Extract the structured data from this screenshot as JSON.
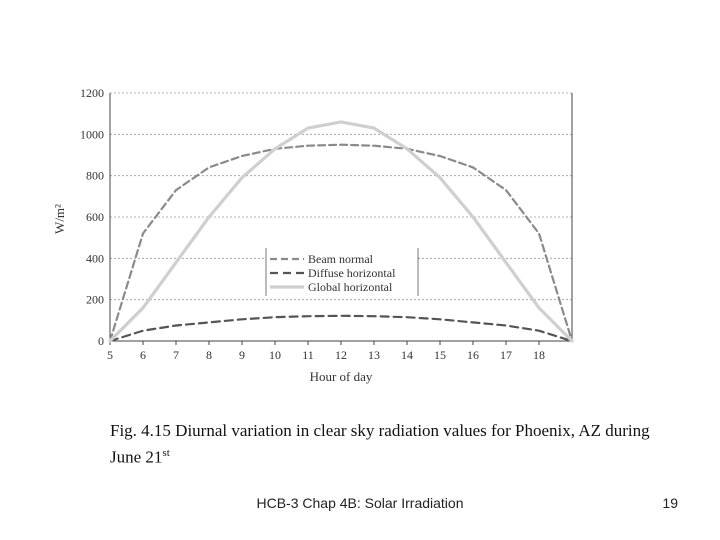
{
  "chart_data": {
    "type": "line",
    "xlabel": "Hour of day",
    "ylabel": "W/m²",
    "xlim": [
      5,
      19
    ],
    "ylim": [
      0,
      1200
    ],
    "xticks": [
      5,
      6,
      7,
      8,
      9,
      10,
      11,
      12,
      13,
      14,
      15,
      16,
      17,
      18
    ],
    "yticks": [
      0,
      200,
      400,
      600,
      800,
      1000,
      1200
    ],
    "grid": "horizontal dashed",
    "legend_position": "center-right",
    "series": [
      {
        "name": "Beam normal",
        "style": "dashed",
        "color": "#8a8a8a",
        "x": [
          5,
          6,
          7,
          8,
          9,
          10,
          11,
          12,
          13,
          14,
          15,
          16,
          17,
          18,
          19
        ],
        "y": [
          0,
          520,
          730,
          840,
          895,
          930,
          945,
          950,
          945,
          930,
          895,
          840,
          730,
          520,
          0
        ]
      },
      {
        "name": "Diffuse horizontal",
        "style": "dashed",
        "color": "#555555",
        "x": [
          5,
          6,
          7,
          8,
          9,
          10,
          11,
          12,
          13,
          14,
          15,
          16,
          17,
          18,
          19
        ],
        "y": [
          0,
          50,
          75,
          90,
          105,
          115,
          120,
          122,
          120,
          115,
          105,
          90,
          75,
          50,
          0
        ]
      },
      {
        "name": "Global horizontal",
        "style": "solid",
        "color": "#cfcfcf",
        "x": [
          5,
          6,
          7,
          8,
          9,
          10,
          11,
          12,
          13,
          14,
          15,
          16,
          17,
          18,
          19
        ],
        "y": [
          0,
          160,
          380,
          600,
          790,
          930,
          1030,
          1060,
          1030,
          930,
          790,
          600,
          380,
          160,
          0
        ]
      }
    ]
  },
  "caption": {
    "text_main": "Fig. 4.15 Diurnal variation in clear sky radiation values for Phoenix, AZ during June 21",
    "sup": "st"
  },
  "footer": {
    "title": "HCB-3 Chap 4B: Solar Irradiation",
    "page": "19"
  }
}
